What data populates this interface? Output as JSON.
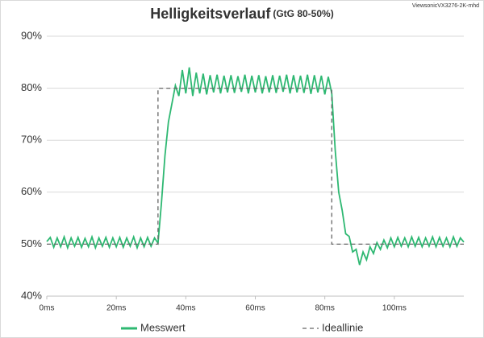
{
  "chart_data": {
    "type": "line",
    "title": "Helligkeitsverlauf",
    "subtitle": "(GtG 80-50%)",
    "annotation": "ViewsonicVX3276-2K-mhd",
    "xlim": [
      0,
      120
    ],
    "xticks": [
      {
        "value": 0,
        "label": "0ms"
      },
      {
        "value": 20,
        "label": "20ms"
      },
      {
        "value": 40,
        "label": "40ms"
      },
      {
        "value": 60,
        "label": "60ms"
      },
      {
        "value": 80,
        "label": "80ms"
      },
      {
        "value": 100,
        "label": "100ms"
      }
    ],
    "ylim": [
      40,
      90
    ],
    "yticks": [
      {
        "value": 40,
        "label": "40%"
      },
      {
        "value": 50,
        "label": "50%"
      },
      {
        "value": 60,
        "label": "60%"
      },
      {
        "value": 70,
        "label": "70%"
      },
      {
        "value": 80,
        "label": "80%"
      },
      {
        "value": 90,
        "label": "90%"
      }
    ],
    "grid": true,
    "legend": "bottom",
    "series": [
      {
        "name": "Messwert",
        "color": "#2eb872",
        "style": "solid",
        "x": [
          0,
          1,
          2,
          3,
          4,
          5,
          6,
          7,
          8,
          9,
          10,
          11,
          12,
          13,
          14,
          15,
          16,
          17,
          18,
          19,
          20,
          21,
          22,
          23,
          24,
          25,
          26,
          27,
          28,
          29,
          30,
          31,
          32,
          33,
          34,
          35,
          36,
          37,
          38,
          39,
          40,
          41,
          42,
          43,
          44,
          45,
          46,
          47,
          48,
          49,
          50,
          51,
          52,
          53,
          54,
          55,
          56,
          57,
          58,
          59,
          60,
          61,
          62,
          63,
          64,
          65,
          66,
          67,
          68,
          69,
          70,
          71,
          72,
          73,
          74,
          75,
          76,
          77,
          78,
          79,
          80,
          81,
          82,
          83,
          84,
          85,
          86,
          87,
          88,
          89,
          90,
          91,
          92,
          93,
          94,
          95,
          96,
          97,
          98,
          99,
          100,
          101,
          102,
          103,
          104,
          105,
          106,
          107,
          108,
          109,
          110,
          111,
          112,
          113,
          114,
          115,
          116,
          117,
          118,
          119,
          120
        ],
        "values": [
          50.5,
          51.3,
          49.4,
          51.2,
          49.5,
          51.4,
          49.3,
          51.2,
          49.6,
          51.3,
          49.4,
          51.1,
          49.5,
          51.4,
          49.3,
          51.2,
          49.6,
          51.3,
          49.4,
          51.2,
          49.5,
          51.3,
          49.4,
          51.2,
          49.6,
          51.4,
          49.3,
          51.2,
          49.5,
          51.3,
          49.6,
          51.2,
          50.2,
          58,
          67,
          73.5,
          77,
          80.5,
          78.5,
          83.5,
          79,
          84,
          78.5,
          83,
          79,
          82.8,
          78.8,
          82.5,
          79.2,
          82.6,
          79,
          82.4,
          79.2,
          82.5,
          79.1,
          82.3,
          79.3,
          82.6,
          79,
          82.4,
          79.2,
          82.5,
          79,
          82.3,
          79.2,
          82.5,
          79.1,
          82.4,
          79.3,
          82.6,
          79,
          82.5,
          79.2,
          82.4,
          79.1,
          82.6,
          78.9,
          82.5,
          79.2,
          82.4,
          78.8,
          82.2,
          79,
          68,
          60,
          56.5,
          52,
          51.5,
          48.5,
          49,
          46,
          48.5,
          47,
          49.5,
          48.2,
          50.3,
          49,
          50.8,
          49.3,
          51.2,
          49.5,
          51.3,
          49.6,
          51.2,
          49.5,
          51.4,
          49.6,
          51.3,
          49.5,
          51.2,
          49.6,
          51.4,
          49.5,
          51.3,
          49.6,
          51.2,
          49.5,
          51.4,
          49.6,
          51.2,
          50.4
        ]
      },
      {
        "name": "Ideallinie",
        "color": "#666666",
        "style": "dashed",
        "x": [
          0,
          32,
          32,
          82,
          82,
          120
        ],
        "values": [
          50,
          50,
          80,
          80,
          50,
          50
        ]
      }
    ]
  }
}
